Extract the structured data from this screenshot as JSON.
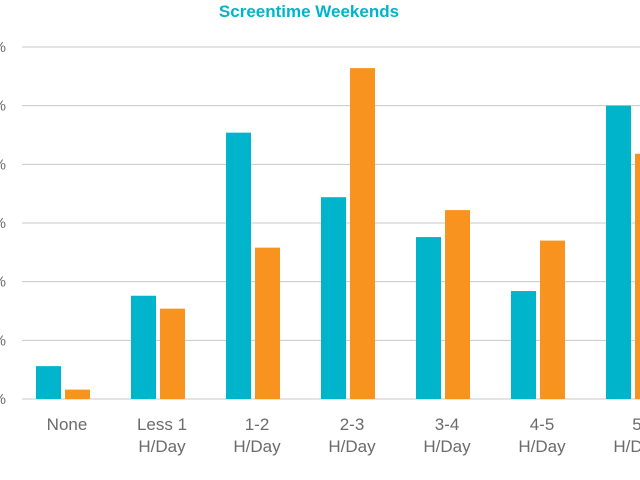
{
  "chart_data": {
    "type": "bar",
    "title": "Screentime Weekends",
    "categories": [
      [
        "None"
      ],
      [
        "Less 1",
        "H/Day"
      ],
      [
        "1-2",
        "H/Day"
      ],
      [
        "2-3",
        "H/Day"
      ],
      [
        "3-4",
        "H/Day"
      ],
      [
        "4-5",
        "H/Day"
      ],
      [
        "5",
        "H/Day"
      ]
    ],
    "series": [
      {
        "color": "#00b4cc",
        "values": [
          2.8,
          8.8,
          22.7,
          17.2,
          13.8,
          9.2,
          25.0
        ]
      },
      {
        "color": "#f7931e",
        "values": [
          0.8,
          7.7,
          12.9,
          28.2,
          16.1,
          13.5,
          20.9
        ]
      }
    ],
    "y_tick_labels": [
      "%",
      "%",
      "%",
      "%",
      "%",
      "%",
      "%"
    ],
    "ylim": [
      0,
      30
    ],
    "y_ticks": [
      0,
      5,
      10,
      15,
      20,
      25,
      30
    ],
    "grid": true,
    "title_color": "#00b4cc",
    "grid_color": "#c8c8c8",
    "axis_text_color": "#6b6b6b"
  }
}
